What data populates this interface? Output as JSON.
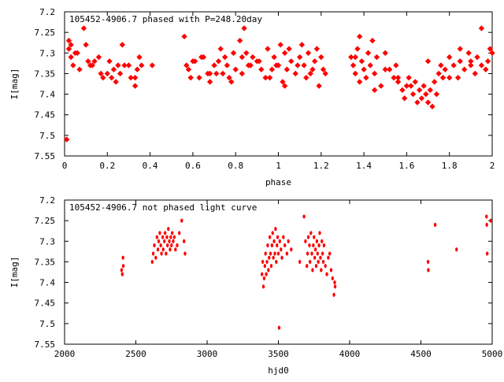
{
  "chart_data": [
    {
      "type": "scatter",
      "title": "105452-4906.7 phased with P=248.20day",
      "xlabel": "phase",
      "ylabel": "I[mag]",
      "xlim": [
        0,
        2
      ],
      "ylim": [
        7.2,
        7.55
      ],
      "y_inverted": true,
      "xticks": [
        "0",
        "0.2",
        "0.4",
        "0.6",
        "0.8",
        "1",
        "1.2",
        "1.4",
        "1.6",
        "1.8",
        "2"
      ],
      "yticks": [
        "7.2",
        "7.25",
        "7.3",
        "7.35",
        "7.4",
        "7.45",
        "7.5",
        "7.55"
      ],
      "marker_color": "#ff0000",
      "series": [
        {
          "x": [
            0.01,
            0.02,
            0.02,
            0.03,
            0.04,
            0.06,
            0.07,
            0.09,
            0.1,
            0.11,
            0.13,
            0.14,
            0.16,
            0.17,
            0.2,
            0.21,
            0.22,
            0.23,
            0.24,
            0.25,
            0.27,
            0.28,
            0.3,
            0.31,
            0.33,
            0.34,
            0.35,
            0.36,
            0.41,
            0.56,
            0.58,
            0.59,
            0.61,
            0.63,
            0.64,
            0.65,
            0.67,
            0.68,
            0.7,
            0.71,
            0.73,
            0.74,
            0.75,
            0.76,
            0.77,
            0.79,
            0.8,
            0.82,
            0.83,
            0.84,
            0.85,
            0.86,
            0.88,
            0.9,
            0.92,
            0.94,
            0.95,
            0.97,
            0.98,
            1.0,
            1.01,
            1.02,
            1.03,
            1.04,
            1.05,
            1.06,
            1.08,
            1.1,
            1.11,
            1.12,
            1.13,
            1.14,
            1.16,
            1.17,
            1.18,
            1.19,
            1.2,
            1.22,
            1.34,
            1.35,
            1.36,
            1.37,
            1.38,
            1.39,
            1.4,
            1.41,
            1.42,
            1.43,
            1.44,
            1.45,
            1.46,
            1.48,
            1.5,
            1.52,
            1.54,
            1.55,
            1.56,
            1.58,
            1.59,
            1.6,
            1.61,
            1.63,
            1.64,
            1.65,
            1.66,
            1.67,
            1.68,
            1.69,
            1.7,
            1.71,
            1.72,
            1.73,
            1.74,
            1.75,
            1.76,
            1.77,
            1.78,
            1.8,
            1.82,
            1.84,
            1.85,
            1.87,
            1.89,
            1.9,
            1.92,
            1.93,
            1.95,
            1.97,
            1.98,
            1.99,
            2.0,
            1.95,
            1.9,
            1.85,
            1.8,
            1.7,
            1.62,
            1.56,
            1.5,
            1.45,
            1.38,
            1.36,
            1.21,
            1.15,
            1.09,
            1.03,
            0.99,
            0.96,
            0.91,
            0.87,
            0.83,
            0.78,
            0.72,
            0.68,
            0.6,
            0.57,
            0.33,
            0.26,
            0.18,
            0.12,
            0.05,
            0.03
          ],
          "y": [
            7.51,
            7.27,
            7.29,
            7.31,
            7.33,
            7.3,
            7.34,
            7.24,
            7.28,
            7.32,
            7.33,
            7.32,
            7.31,
            7.35,
            7.35,
            7.32,
            7.36,
            7.34,
            7.37,
            7.33,
            7.28,
            7.33,
            7.33,
            7.36,
            7.38,
            7.34,
            7.31,
            7.33,
            7.33,
            7.26,
            7.34,
            7.36,
            7.32,
            7.36,
            7.31,
            7.31,
            7.35,
            7.37,
            7.33,
            7.35,
            7.29,
            7.35,
            7.31,
            7.33,
            7.36,
            7.3,
            7.34,
            7.27,
            7.31,
            7.24,
            7.3,
            7.33,
            7.31,
            7.32,
            7.34,
            7.36,
            7.29,
            7.34,
            7.31,
            7.33,
            7.28,
            7.37,
            7.3,
            7.34,
            7.29,
            7.32,
            7.35,
            7.31,
            7.28,
            7.33,
            7.36,
            7.3,
            7.34,
            7.32,
            7.29,
            7.38,
            7.31,
            7.35,
            7.31,
            7.33,
            7.35,
            7.29,
            7.37,
            7.32,
            7.34,
            7.36,
            7.3,
            7.33,
            7.27,
            7.35,
            7.31,
            7.38,
            7.3,
            7.34,
            7.36,
            7.33,
            7.37,
            7.39,
            7.41,
            7.38,
            7.36,
            7.4,
            7.37,
            7.42,
            7.39,
            7.41,
            7.38,
            7.4,
            7.42,
            7.39,
            7.43,
            7.37,
            7.4,
            7.35,
            7.33,
            7.36,
            7.34,
            7.31,
            7.33,
            7.36,
            7.32,
            7.34,
            7.3,
            7.33,
            7.35,
            7.31,
            7.33,
            7.34,
            7.32,
            7.29,
            7.3,
            7.24,
            7.32,
            7.29,
            7.36,
            7.32,
            7.38,
            7.36,
            7.34,
            7.39,
            7.26,
            7.31,
            7.34,
            7.35,
            7.33,
            7.38,
            7.33,
            7.36,
            7.32,
            7.33,
            7.35,
            7.37,
            7.32,
            7.35,
            7.32,
            7.33,
            7.36,
            7.35,
            7.36,
            7.33,
            7.3,
            7.28
          ]
        }
      ]
    },
    {
      "type": "scatter",
      "title": "105452-4906.7 not phased light curve",
      "xlabel": "hjd0",
      "ylabel": "I[mag]",
      "xlim": [
        2000,
        5000
      ],
      "ylim": [
        7.2,
        7.55
      ],
      "y_inverted": true,
      "xticks": [
        "2000",
        "2500",
        "3000",
        "3500",
        "4000",
        "4500",
        "5000"
      ],
      "yticks": [
        "7.2",
        "7.25",
        "7.3",
        "7.35",
        "7.4",
        "7.45",
        "7.5",
        "7.55"
      ],
      "marker_color": "#ff0000",
      "series": [
        {
          "x": [
            2400,
            2405,
            2410,
            2412,
            2615,
            2622,
            2630,
            2640,
            2648,
            2655,
            2660,
            2668,
            2675,
            2680,
            2688,
            2692,
            2700,
            2705,
            2712,
            2718,
            2722,
            2728,
            2735,
            2740,
            2745,
            2750,
            2755,
            2762,
            2770,
            2778,
            2790,
            2805,
            2822,
            2838,
            2845,
            3385,
            3390,
            3395,
            3400,
            3405,
            3410,
            3415,
            3420,
            3425,
            3430,
            3435,
            3440,
            3445,
            3450,
            3455,
            3460,
            3465,
            3470,
            3475,
            3480,
            3485,
            3490,
            3495,
            3500,
            3505,
            3510,
            3518,
            3525,
            3535,
            3545,
            3560,
            3570,
            3590,
            3650,
            3680,
            3690,
            3700,
            3705,
            3710,
            3718,
            3722,
            3728,
            3735,
            3740,
            3745,
            3750,
            3755,
            3760,
            3765,
            3770,
            3775,
            3780,
            3785,
            3790,
            3795,
            3800,
            3805,
            3810,
            3815,
            3820,
            3830,
            3840,
            3850,
            3860,
            3870,
            3880,
            3890,
            3895,
            3898,
            4550,
            4552,
            4600,
            4750,
            4960,
            4962,
            4965,
            4990
          ],
          "y": [
            7.37,
            7.38,
            7.34,
            7.36,
            7.35,
            7.33,
            7.31,
            7.34,
            7.29,
            7.32,
            7.3,
            7.28,
            7.31,
            7.33,
            7.29,
            7.32,
            7.3,
            7.28,
            7.33,
            7.29,
            7.31,
            7.27,
            7.3,
            7.32,
            7.29,
            7.31,
            7.28,
            7.3,
            7.29,
            7.32,
            7.31,
            7.28,
            7.25,
            7.3,
            7.33,
            7.38,
            7.35,
            7.41,
            7.39,
            7.36,
            7.33,
            7.38,
            7.35,
            7.31,
            7.37,
            7.34,
            7.29,
            7.33,
            7.36,
            7.31,
            7.28,
            7.34,
            7.3,
            7.33,
            7.27,
            7.35,
            7.31,
            7.29,
            7.33,
            7.51,
            7.3,
            7.32,
            7.34,
            7.29,
            7.31,
            7.33,
            7.3,
            7.32,
            7.35,
            7.24,
            7.3,
            7.36,
            7.33,
            7.29,
            7.31,
            7.35,
            7.28,
            7.33,
            7.37,
            7.31,
            7.29,
            7.34,
            7.32,
            7.36,
            7.3,
            7.33,
            7.35,
            7.31,
            7.28,
            7.34,
            7.37,
            7.3,
            7.33,
            7.35,
            7.31,
            7.36,
            7.38,
            7.34,
            7.33,
            7.37,
            7.39,
            7.43,
            7.4,
            7.41,
            7.35,
            7.37,
            7.26,
            7.32,
            7.24,
            7.26,
            7.33,
            7.25
          ]
        }
      ]
    }
  ]
}
